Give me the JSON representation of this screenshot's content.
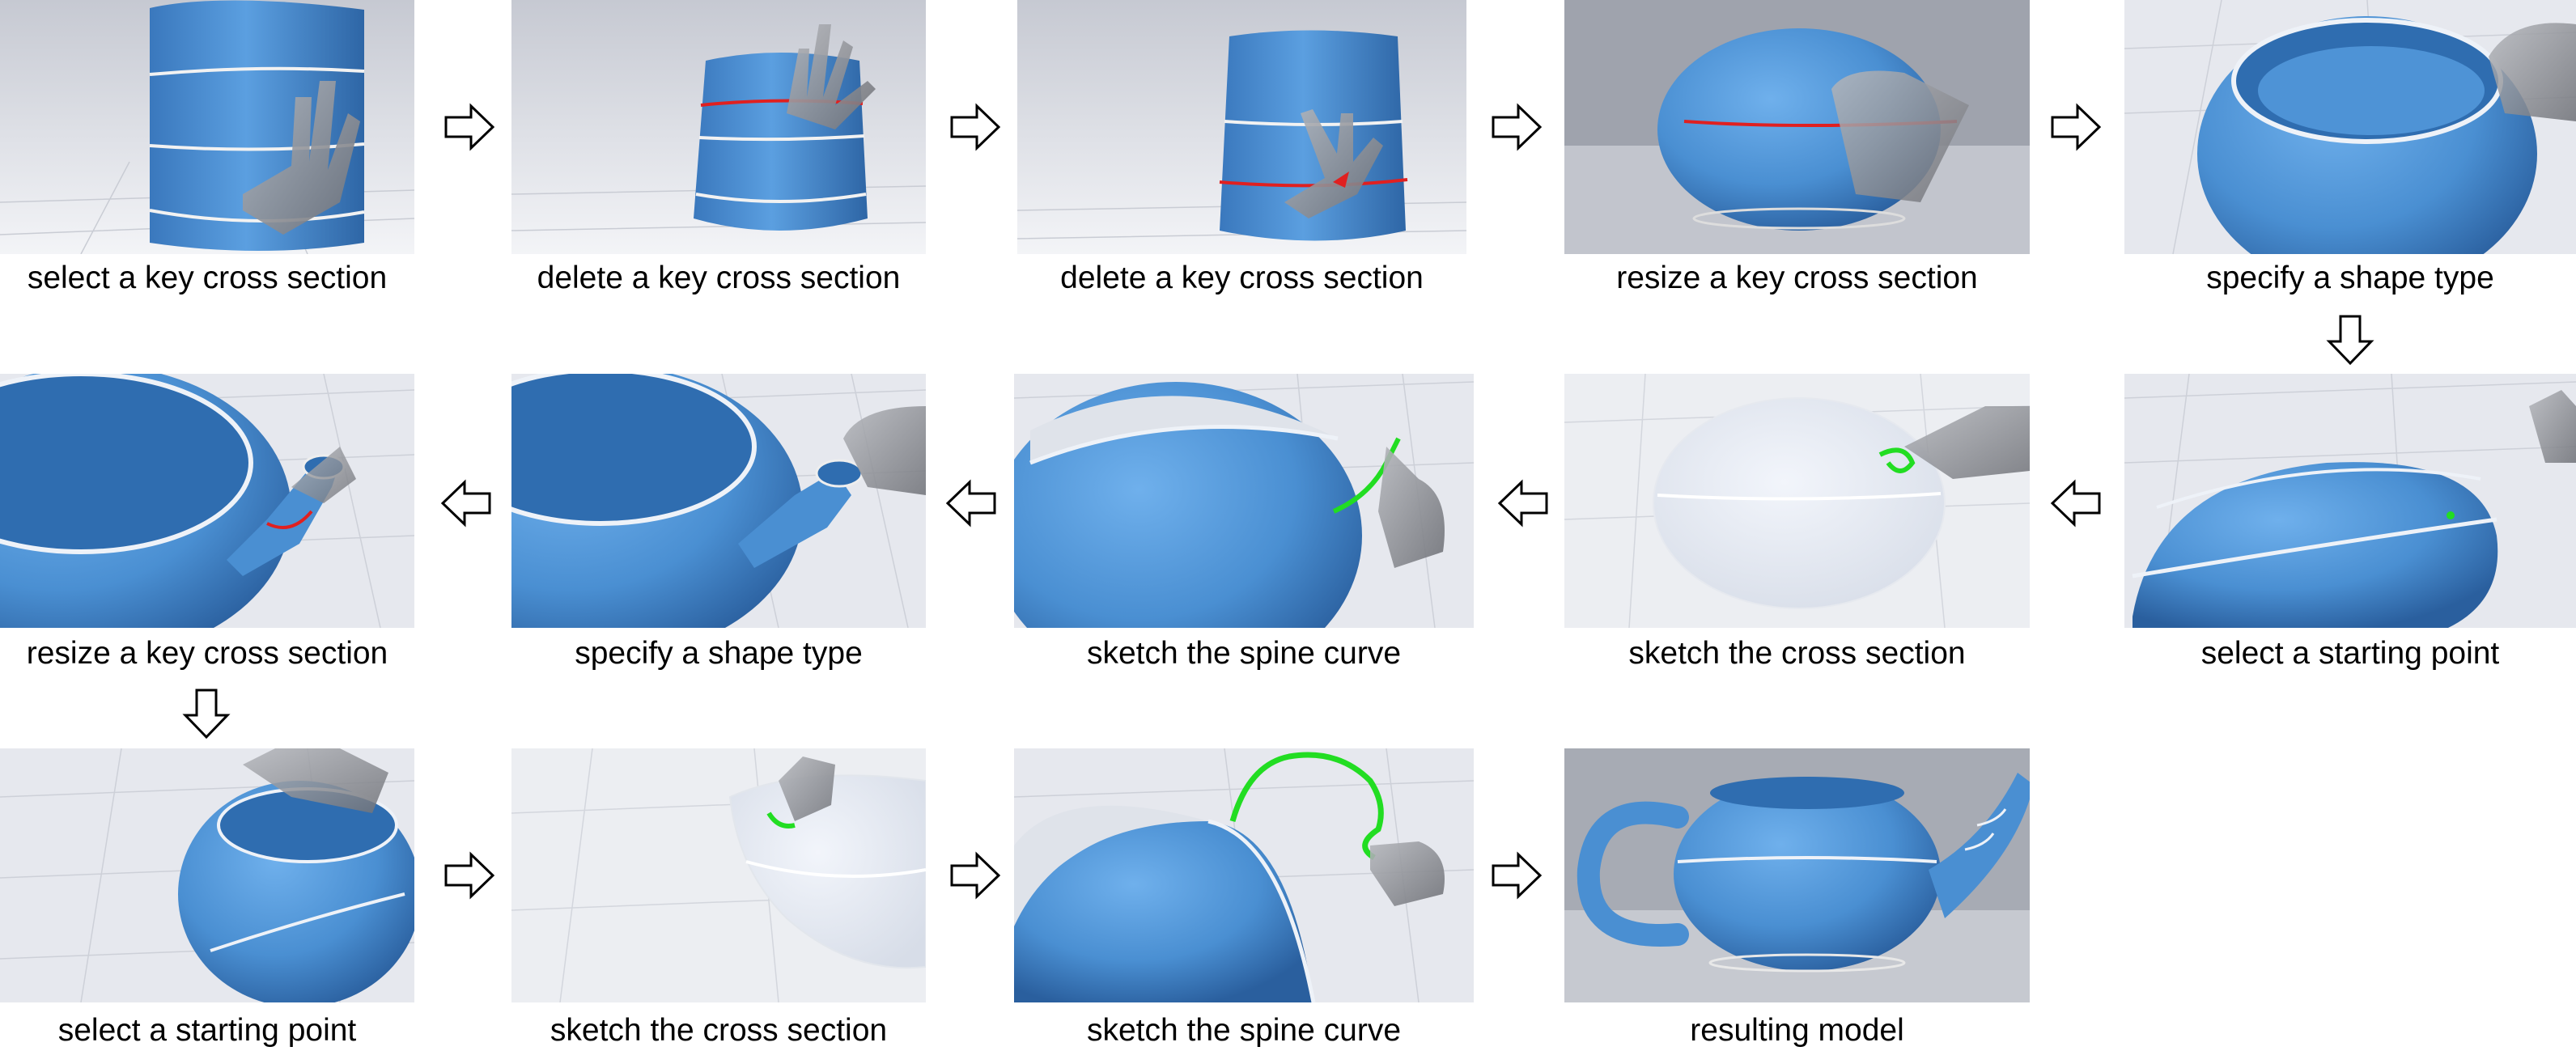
{
  "figure": {
    "steps": [
      {
        "caption": "select a key cross section"
      },
      {
        "caption": "delete a key cross section"
      },
      {
        "caption": "delete a key cross section"
      },
      {
        "caption": "resize a key cross section"
      },
      {
        "caption": "specify a shape type"
      },
      {
        "caption": "select a starting point"
      },
      {
        "caption": "sketch the cross section"
      },
      {
        "caption": "sketch the spine curve"
      },
      {
        "caption": "specify a shape type"
      },
      {
        "caption": "resize a key cross section"
      },
      {
        "caption": "select a starting point"
      },
      {
        "caption": "sketch the cross section"
      },
      {
        "caption": "sketch the spine curve"
      },
      {
        "caption": "resulting model"
      }
    ],
    "colors": {
      "model_blue": "#4a8fd2",
      "model_blue_dark": "#2f6db0",
      "selection_red": "#e02020",
      "sketch_green": "#22dd22",
      "grid_background": "#dfe2ea",
      "hand_gray": "#8a8c92"
    }
  }
}
